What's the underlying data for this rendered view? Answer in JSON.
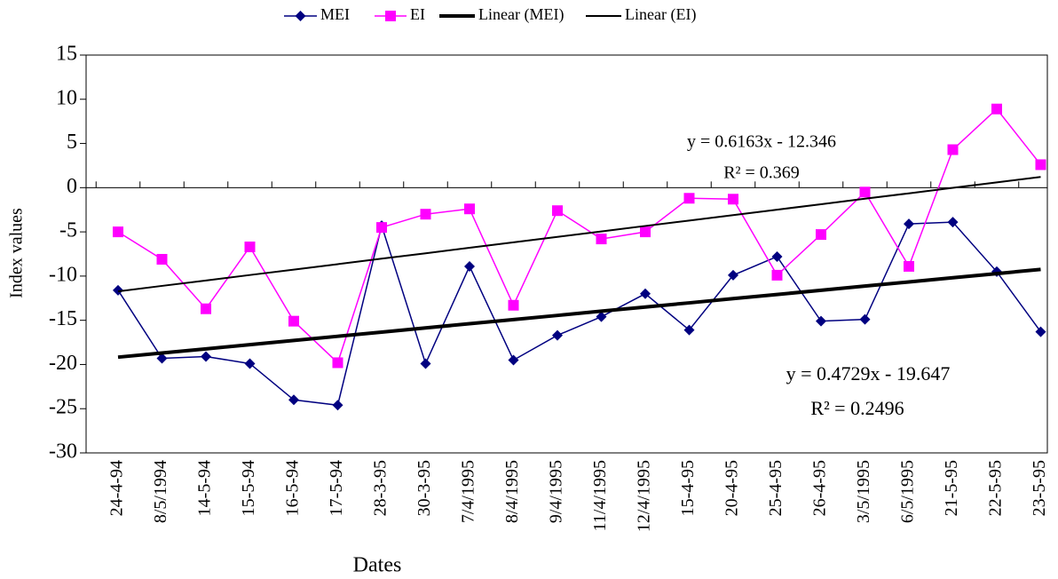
{
  "chart_data": {
    "type": "line",
    "x_label": "Dates",
    "y_label": "Index values",
    "categories": [
      "24-4-94",
      "8/5/1994",
      "14-5-94",
      "15-5-94",
      "16-5-94",
      "17-5-94",
      "28-3-95",
      "30-3-95",
      "7/4/1995",
      "8/4/1995",
      "9/4/1995",
      "11/4/1995",
      "12/4/1995",
      "15-4-95",
      "20-4-95",
      "25-4-95",
      "26-4-95",
      "3/5/1995",
      "6/5/1995",
      "21-5-95",
      "22-5-95",
      "23-5-95"
    ],
    "series": [
      {
        "name": "MEI",
        "color": "#000080",
        "marker": "diamond",
        "width": 1.5,
        "values": [
          -11.6,
          -19.3,
          -19.1,
          -19.9,
          -24,
          -24.6,
          -4.3,
          -19.9,
          -8.9,
          -19.5,
          -16.7,
          -14.6,
          -12,
          -16.1,
          -9.9,
          -7.8,
          -15.1,
          -14.9,
          -4.1,
          -3.9,
          -9.5,
          -16.3
        ]
      },
      {
        "name": "EI",
        "color": "#ff00ff",
        "marker": "square",
        "width": 1.5,
        "values": [
          -5,
          -8.1,
          -13.7,
          -6.7,
          -15.1,
          -19.8,
          -4.5,
          -3,
          -2.4,
          -13.3,
          -2.6,
          -5.8,
          -5,
          -1.2,
          -1.3,
          -9.9,
          -5.3,
          -0.5,
          -8.9,
          4.3,
          8.9,
          2.6
        ]
      },
      {
        "name": "Linear (MEI)",
        "color": "#000000",
        "marker": "none",
        "width": 4,
        "values": [
          -19.17,
          -18.7,
          -18.23,
          -17.76,
          -17.28,
          -16.81,
          -16.34,
          -15.86,
          -15.39,
          -14.92,
          -14.45,
          -13.97,
          -13.5,
          -13.03,
          -12.55,
          -12.08,
          -11.61,
          -11.13,
          -10.66,
          -10.19,
          -9.72,
          -9.24
        ]
      },
      {
        "name": "Linear (EI)",
        "color": "#000000",
        "marker": "none",
        "width": 2,
        "values": [
          -11.73,
          -11.11,
          -10.5,
          -9.88,
          -9.27,
          -8.65,
          -8.03,
          -7.42,
          -6.8,
          -6.18,
          -5.57,
          -4.95,
          -4.33,
          -3.72,
          -3.1,
          -2.49,
          -1.87,
          -1.25,
          -0.64,
          -0.02,
          0.6,
          1.21
        ]
      }
    ],
    "annotations": [
      "y = 0.6163x - 12.346",
      "R² = 0.369",
      "y = 0.4729x - 19.647",
      "R² = 0.2496"
    ],
    "ylim": [
      -30,
      15
    ],
    "yticks": [
      -30,
      -25,
      -20,
      -15,
      -10,
      -5,
      0,
      5,
      10,
      15
    ],
    "grid": false,
    "legend": "top"
  }
}
